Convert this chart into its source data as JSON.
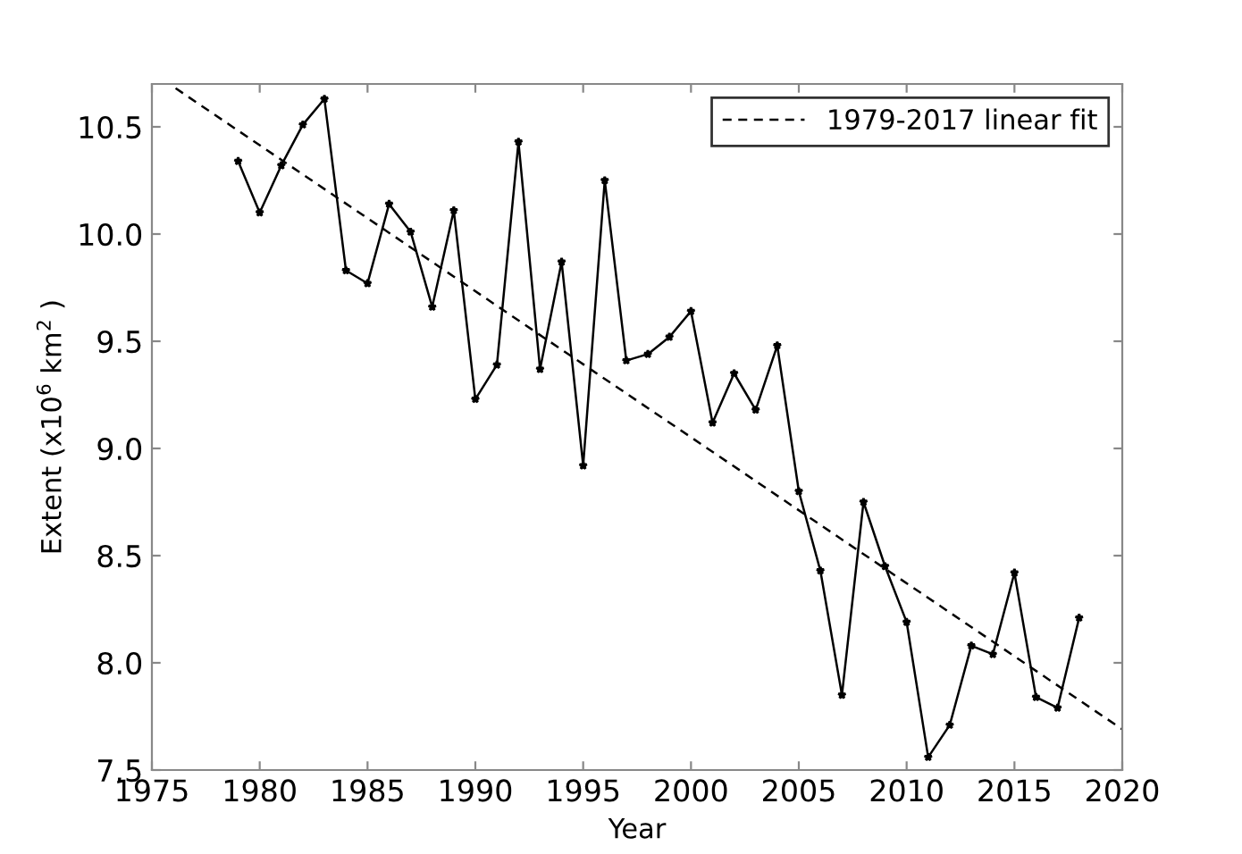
{
  "chart_data": {
    "type": "line",
    "xlabel": "Year",
    "ylabel": "Extent (x10$^{6}$ km$^{2}$ )",
    "xlim": [
      1975,
      2020
    ],
    "ylim": [
      7.5,
      10.7
    ],
    "xticks": [
      1975,
      1980,
      1985,
      1990,
      1995,
      2000,
      2005,
      2010,
      2015,
      2020
    ],
    "yticks": [
      7.5,
      {
        "value": 8,
        "label": "8.0"
      },
      8.5,
      {
        "value": 9,
        "label": "9.0"
      },
      9.5,
      {
        "value": 10,
        "label": "10.0"
      },
      10.5
    ],
    "grid": false,
    "legend": "top right",
    "series": [
      {
        "color": "#000000",
        "marker": "star",
        "line_style": "solid",
        "x": [
          1979,
          1980,
          1981,
          1982,
          1983,
          1984,
          1985,
          1986,
          1987,
          1988,
          1989,
          1990,
          1991,
          1992,
          1993,
          1994,
          1995,
          1996,
          1997,
          1998,
          1999,
          2000,
          2001,
          2002,
          2003,
          2004,
          2005,
          2006,
          2007,
          2008,
          2009,
          2010,
          2011,
          2012,
          2013,
          2014,
          2015,
          2016,
          2017,
          2018
        ],
        "values": [
          10.34,
          10.1,
          10.32,
          10.51,
          10.63,
          9.83,
          9.77,
          10.14,
          10.01,
          9.66,
          10.11,
          9.23,
          9.39,
          10.43,
          9.37,
          9.87,
          8.92,
          10.25,
          9.41,
          9.44,
          9.52,
          9.64,
          9.12,
          9.35,
          9.18,
          9.48,
          8.8,
          8.43,
          7.85,
          8.75,
          8.45,
          8.19,
          7.56,
          7.71,
          8.08,
          8.04,
          8.42,
          7.84,
          7.79,
          8.21
        ]
      },
      {
        "name": "1979-2017 linear fit",
        "color": "#000000",
        "marker": "none",
        "line_style": "dashed",
        "x": [
          1976.1,
          2020
        ],
        "values": [
          10.68,
          7.69
        ]
      }
    ]
  }
}
